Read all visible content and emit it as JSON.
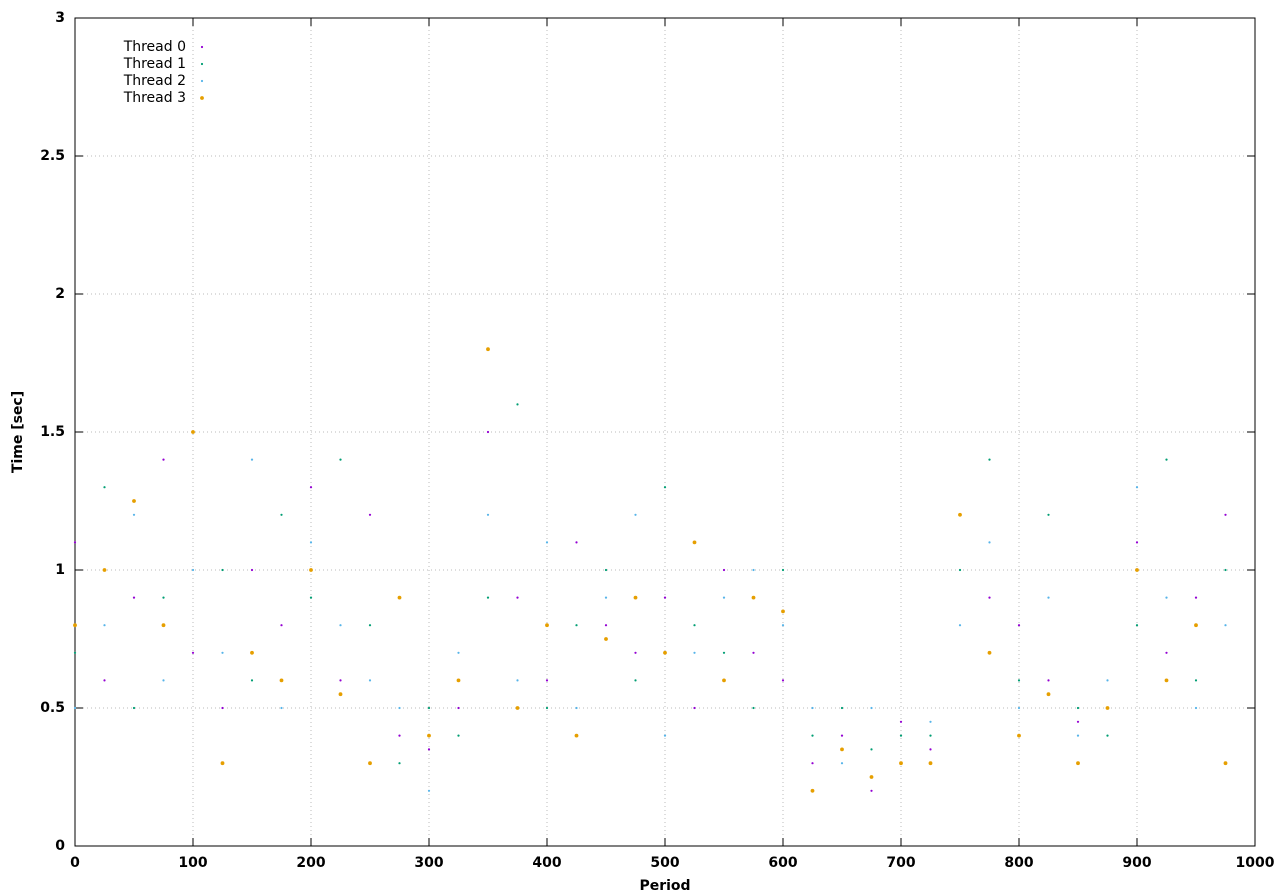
{
  "chart_data": {
    "type": "scatter",
    "xlabel": "Period",
    "ylabel": "Time [sec]",
    "xlim": [
      0,
      1000
    ],
    "ylim": [
      0,
      3
    ],
    "xticks": [
      0,
      100,
      200,
      300,
      400,
      500,
      600,
      700,
      800,
      900,
      1000
    ],
    "yticks": [
      0,
      0.5,
      1,
      1.5,
      2,
      2.5,
      3
    ],
    "grid": true,
    "legend": "upper left",
    "x": [
      0,
      25,
      50,
      75,
      100,
      125,
      150,
      175,
      200,
      225,
      250,
      275,
      300,
      325,
      350,
      375,
      400,
      425,
      450,
      475,
      500,
      525,
      550,
      575,
      600,
      625,
      650,
      675,
      700,
      725,
      750,
      775,
      800,
      825,
      850,
      875,
      900,
      925,
      950,
      975
    ],
    "series": [
      {
        "name": "Thread 0",
        "color": "#9400d3",
        "marker_size": 1.1,
        "values": [
          1.1,
          0.6,
          0.9,
          1.4,
          0.7,
          0.5,
          1.0,
          0.8,
          1.3,
          0.6,
          1.2,
          0.4,
          0.35,
          0.5,
          1.5,
          0.9,
          0.6,
          1.1,
          0.8,
          0.7,
          0.9,
          0.5,
          1.0,
          0.7,
          0.6,
          0.3,
          0.4,
          0.2,
          0.45,
          0.35,
          1.2,
          0.9,
          0.8,
          0.6,
          0.45,
          0.5,
          1.1,
          0.7,
          0.9,
          1.2
        ]
      },
      {
        "name": "Thread 1",
        "color": "#009e73",
        "marker_size": 1.1,
        "values": [
          0.7,
          1.3,
          0.5,
          0.9,
          1.5,
          1.0,
          0.6,
          1.2,
          0.9,
          1.4,
          0.8,
          0.3,
          0.5,
          0.4,
          0.9,
          1.6,
          0.5,
          0.8,
          1.0,
          0.6,
          1.3,
          0.8,
          0.7,
          0.5,
          1.0,
          0.4,
          0.5,
          0.35,
          0.4,
          0.4,
          1.0,
          1.4,
          0.6,
          1.2,
          0.5,
          0.4,
          0.8,
          1.4,
          0.6,
          1.0
        ]
      },
      {
        "name": "Thread 2",
        "color": "#56b4e9",
        "marker_size": 1.1,
        "values": [
          0.5,
          0.8,
          1.2,
          0.6,
          1.0,
          0.7,
          1.4,
          0.5,
          1.1,
          0.8,
          0.6,
          0.5,
          0.2,
          0.7,
          1.2,
          0.6,
          1.1,
          0.5,
          0.9,
          1.2,
          0.4,
          0.7,
          0.9,
          1.0,
          0.8,
          0.5,
          0.3,
          0.5,
          0.3,
          0.45,
          0.8,
          1.1,
          0.5,
          0.9,
          0.4,
          0.6,
          1.3,
          0.9,
          0.5,
          0.8
        ]
      },
      {
        "name": "Thread 3",
        "color": "#e69f00",
        "marker_size": 1.9,
        "values": [
          0.8,
          1.0,
          1.25,
          0.8,
          1.5,
          0.3,
          0.7,
          0.6,
          1.0,
          0.55,
          0.3,
          0.9,
          0.4,
          0.6,
          1.8,
          0.5,
          0.8,
          0.4,
          0.75,
          0.9,
          0.7,
          1.1,
          0.6,
          0.9,
          0.85,
          0.2,
          0.35,
          0.25,
          0.3,
          0.3,
          1.2,
          0.7,
          0.4,
          0.55,
          0.3,
          0.5,
          1.0,
          0.6,
          0.8,
          0.3
        ]
      }
    ]
  }
}
